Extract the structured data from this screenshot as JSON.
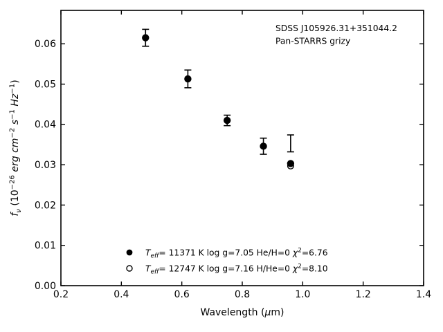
{
  "figure": {
    "background": "#ffffff",
    "foreground": "#000000"
  },
  "chart_data": {
    "type": "scatter",
    "title": "",
    "xlabel": "Wavelength (μm)",
    "ylabel": "f_ν (10^−26 erg cm^−2 s^−1 Hz^−1)",
    "xlabel_segments": [
      [
        "Wavelength (",
        ""
      ],
      [
        "μ",
        "i"
      ],
      [
        "m)",
        ""
      ]
    ],
    "ylabel_segments": [
      [
        "f",
        "i"
      ],
      [
        "ν",
        "i sub"
      ],
      [
        " (10",
        ""
      ],
      [
        "−26",
        "sup"
      ],
      [
        " ",
        ""
      ],
      [
        "erg cm",
        "i"
      ],
      [
        "−2",
        "sup"
      ],
      [
        " ",
        ""
      ],
      [
        "s",
        "i"
      ],
      [
        "−1",
        "sup"
      ],
      [
        " ",
        ""
      ],
      [
        "Hz",
        "i"
      ],
      [
        "−1",
        "sup"
      ],
      [
        ")",
        ""
      ]
    ],
    "xlim": [
      0.2,
      1.4
    ],
    "ylim": [
      0,
      0.0683
    ],
    "xticks": [
      0.2,
      0.4,
      0.6,
      0.8,
      1.0,
      1.2,
      1.4
    ],
    "yticks": [
      0.0,
      0.01,
      0.02,
      0.03,
      0.04,
      0.05,
      0.06
    ],
    "x_tick_decimals": 1,
    "y_tick_decimals": 2,
    "grid": false,
    "tick_direction": "in",
    "ticks_all_sides": true,
    "annotations": [
      {
        "text": "SDSS J105926.31+351044.2"
      },
      {
        "text": "Pan-STARRS grizy"
      }
    ],
    "annotation_position": "top-right",
    "series": [
      {
        "name": "Pan-STARRS grizy photometry",
        "marker": "errorbar",
        "points": [
          {
            "x": 0.48,
            "y": 0.0615,
            "yerr": 0.0021
          },
          {
            "x": 0.62,
            "y": 0.0513,
            "yerr": 0.0022
          },
          {
            "x": 0.75,
            "y": 0.041,
            "yerr": 0.0013
          },
          {
            "x": 0.87,
            "y": 0.0346,
            "yerr": 0.002
          },
          {
            "x": 0.96,
            "y": 0.0353,
            "yerr": 0.0021
          }
        ]
      },
      {
        "name": "model Teff=11371 K log g=7.05 He/H=0",
        "marker": "filled-circle",
        "points": [
          {
            "x": 0.48,
            "y": 0.0615
          },
          {
            "x": 0.62,
            "y": 0.0513
          },
          {
            "x": 0.75,
            "y": 0.041
          },
          {
            "x": 0.87,
            "y": 0.0346
          },
          {
            "x": 0.96,
            "y": 0.0303
          }
        ]
      },
      {
        "name": "model Teff=12747 K log g=7.16 H/He=0",
        "marker": "open-circle",
        "points": [
          {
            "x": 0.96,
            "y": 0.0297
          }
        ]
      }
    ],
    "legend": {
      "position": "lower-center-inside",
      "frame": false,
      "entries": [
        {
          "marker": "filled-circle",
          "label": "T_eff= 11371 K  log g=7.05  He/H=0  χ²=6.76",
          "segments": [
            [
              "T",
              "i"
            ],
            [
              "eff",
              "i sub"
            ],
            [
              "= 11371 K  log g=7.05  He/H=0  ",
              ""
            ],
            [
              "χ",
              "i"
            ],
            [
              "2",
              "sup"
            ],
            [
              "=6.76",
              ""
            ]
          ]
        },
        {
          "marker": "open-circle",
          "label": "T_eff= 12747 K  log g=7.16  H/He=0  χ²=8.10",
          "segments": [
            [
              "T",
              "i"
            ],
            [
              "eff",
              "i sub"
            ],
            [
              "= 12747 K  log g=7.16  H/He=0  ",
              ""
            ],
            [
              "χ",
              "i"
            ],
            [
              "2",
              "sup"
            ],
            [
              "=8.10",
              ""
            ]
          ]
        }
      ]
    }
  }
}
